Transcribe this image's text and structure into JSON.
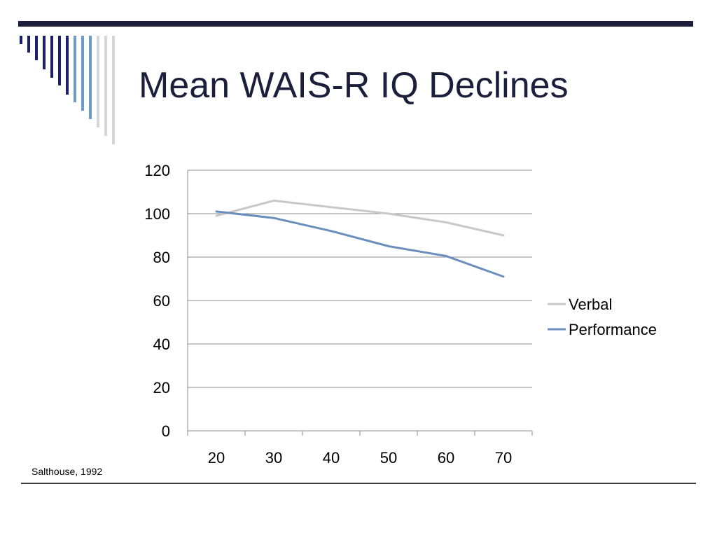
{
  "slide": {
    "title": "Mean WAIS-R IQ Declines",
    "citation": "Salthouse, 1992"
  },
  "colors": {
    "title": "#1c1f3b",
    "decoration_navy": "#1c1f6b",
    "decoration_blue": "#6d9ac8",
    "decoration_gray": "#d6d6d6",
    "gridline": "#8c8c8c",
    "verbal": "#c8c8c8",
    "performance": "#6a8fbd"
  },
  "chart_data": {
    "type": "line",
    "categories": [
      "20",
      "30",
      "40",
      "50",
      "60",
      "70"
    ],
    "series": [
      {
        "name": "Verbal",
        "color": "#c8c8c8",
        "values": [
          99,
          106,
          103,
          100,
          96,
          90
        ]
      },
      {
        "name": "Performance",
        "color": "#6a8fbd",
        "values": [
          101,
          98,
          92,
          85,
          80.5,
          71
        ]
      }
    ],
    "ylim": [
      0,
      120
    ],
    "yticks": [
      "0",
      "20",
      "40",
      "60",
      "80",
      "100",
      "120"
    ],
    "title": "",
    "xlabel": "",
    "ylabel": "",
    "grid": true,
    "legend_position": "right"
  }
}
